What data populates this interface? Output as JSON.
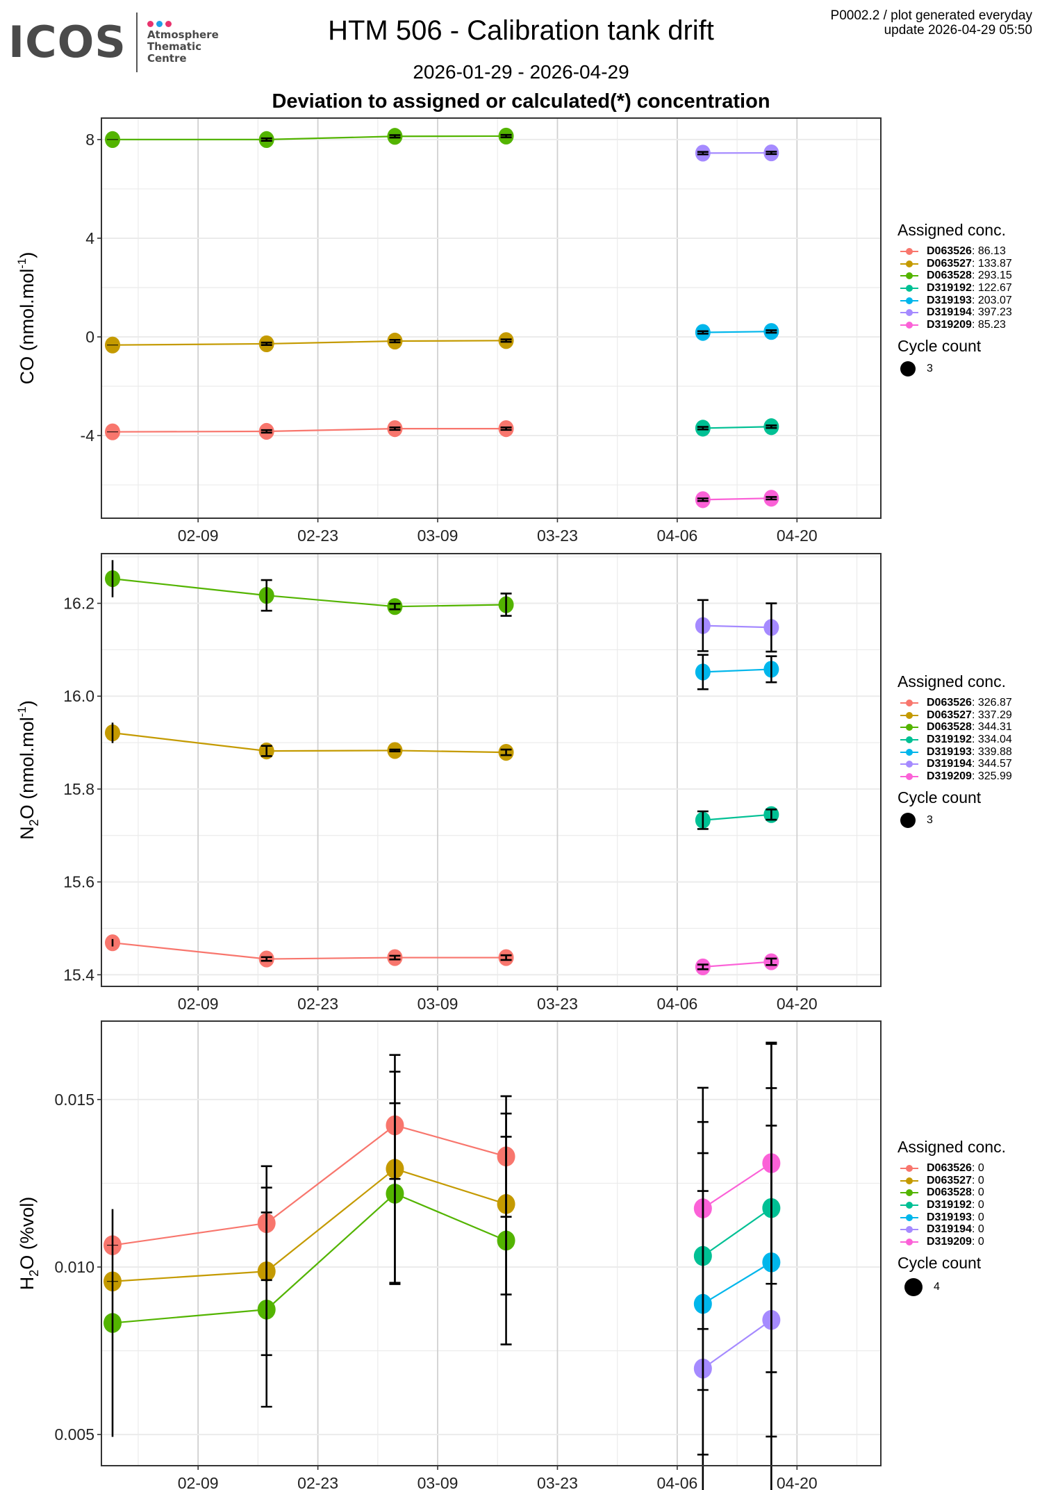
{
  "header": {
    "logo_word": "ICOS",
    "logo_lines": [
      "Atmosphere",
      "Thematic",
      "Centre"
    ],
    "logo_dot_colors": [
      "#e8336d",
      "#1ea0e6",
      "#e8336d"
    ],
    "title": "HTM 506 - Calibration tank drift",
    "date_range": "2026-01-29 - 2026-04-29",
    "heading": "Deviation to assigned or calculated(*) concentration",
    "meta_line1": "P0002.2 / plot generated everyday",
    "meta_line2": "update  2026-04-29 05:50"
  },
  "series_colors": {
    "D063526": "#F8766D",
    "D063527": "#C49A00",
    "D063528": "#53B400",
    "D319192": "#00C094",
    "D319193": "#00B6EB",
    "D319194": "#A58AFF",
    "D319209": "#FB61D7"
  },
  "chart_data": [
    {
      "type": "line",
      "panel": "CO",
      "ylabel": "CO (nmol.mol-1)",
      "ylabel_main": "CO (nmol.mol",
      "ylabel_sup": "-1",
      "ylabel_tail": ")",
      "ylim": [
        -7.35,
        8.87
      ],
      "yticks": [
        8,
        4,
        0,
        -4
      ],
      "ytick_labels": [
        "8",
        "4",
        "0",
        "-4"
      ],
      "xticks": [
        "2026-02-09",
        "2026-02-23",
        "2026-03-09",
        "2026-03-23",
        "2026-04-06",
        "2026-04-20"
      ],
      "xtick_labels": [
        "02-09",
        "02-23",
        "03-09",
        "03-23",
        "04-06",
        "04-20"
      ],
      "xlim": [
        "2026-01-28.7",
        "2026-04-29.8"
      ],
      "grid": true,
      "legend_title": "Assigned conc.",
      "cycle_title": "Cycle count",
      "cycle_value": "3",
      "series": [
        {
          "name": "D063526",
          "assigned": "86.13",
          "x": [
            "2026-01-30",
            "2026-02-17",
            "2026-03-04",
            "2026-03-17"
          ],
          "y": [
            -3.85,
            -3.83,
            -3.72,
            -3.72
          ],
          "err": [
            0.0,
            0.05,
            0.05,
            0.05
          ]
        },
        {
          "name": "D063527",
          "assigned": "133.87",
          "x": [
            "2026-01-30",
            "2026-02-17",
            "2026-03-04",
            "2026-03-17"
          ],
          "y": [
            -0.33,
            -0.28,
            -0.17,
            -0.15
          ],
          "err": [
            0.0,
            0.05,
            0.05,
            0.05
          ]
        },
        {
          "name": "D063528",
          "assigned": "293.15",
          "x": [
            "2026-01-30",
            "2026-02-17",
            "2026-03-04",
            "2026-03-17"
          ],
          "y": [
            8.0,
            8.0,
            8.13,
            8.14
          ],
          "err": [
            0.0,
            0.05,
            0.05,
            0.05
          ]
        },
        {
          "name": "D319192",
          "assigned": "122.67",
          "x": [
            "2026-04-09",
            "2026-04-17"
          ],
          "y": [
            -3.7,
            -3.64
          ],
          "err": [
            0.05,
            0.05
          ]
        },
        {
          "name": "D319193",
          "assigned": "203.07",
          "x": [
            "2026-04-09",
            "2026-04-17"
          ],
          "y": [
            0.18,
            0.22
          ],
          "err": [
            0.05,
            0.05
          ]
        },
        {
          "name": "D319194",
          "assigned": "397.23",
          "x": [
            "2026-04-09",
            "2026-04-17"
          ],
          "y": [
            7.45,
            7.46
          ],
          "err": [
            0.05,
            0.05
          ]
        },
        {
          "name": "D319209",
          "assigned": "85.23",
          "x": [
            "2026-04-09",
            "2026-04-17"
          ],
          "y": [
            -6.6,
            -6.54
          ],
          "err": [
            0.05,
            0.05
          ]
        }
      ]
    },
    {
      "type": "line",
      "panel": "N2O",
      "ylabel": "N2O (nmol.mol-1)",
      "ylabel_main": "N",
      "ylabel_sub": "2",
      "ylabel_mid": "O (nmol.mol",
      "ylabel_sup": "-1",
      "ylabel_tail": ")",
      "ylim": [
        15.375,
        16.307
      ],
      "yticks": [
        16.2,
        16.0,
        15.8,
        15.6,
        15.4
      ],
      "ytick_labels": [
        "16.2",
        "16.0",
        "15.8",
        "15.6",
        "15.4"
      ],
      "xticks": [
        "2026-02-09",
        "2026-02-23",
        "2026-03-09",
        "2026-03-23",
        "2026-04-06",
        "2026-04-20"
      ],
      "xtick_labels": [
        "02-09",
        "02-23",
        "03-09",
        "03-23",
        "04-06",
        "04-20"
      ],
      "grid": true,
      "legend_title": "Assigned conc.",
      "cycle_title": "Cycle count",
      "cycle_value": "3",
      "series": [
        {
          "name": "D063526",
          "assigned": "326.87",
          "x": [
            "2026-01-30",
            "2026-02-17",
            "2026-03-04",
            "2026-03-17"
          ],
          "y": [
            15.469,
            15.434,
            15.437,
            15.437
          ],
          "err": [
            0.008,
            0.004,
            0.004,
            0.005
          ]
        },
        {
          "name": "D063527",
          "assigned": "337.29",
          "x": [
            "2026-01-30",
            "2026-02-17",
            "2026-03-04",
            "2026-03-17"
          ],
          "y": [
            15.921,
            15.882,
            15.883,
            15.879
          ],
          "err": [
            0.022,
            0.011,
            0.002,
            0.006
          ]
        },
        {
          "name": "D063528",
          "assigned": "344.31",
          "x": [
            "2026-01-30",
            "2026-02-17",
            "2026-03-04",
            "2026-03-17"
          ],
          "y": [
            16.253,
            16.217,
            16.193,
            16.197
          ],
          "err": [
            0.04,
            0.033,
            0.006,
            0.024
          ]
        },
        {
          "name": "D319192",
          "assigned": "334.04",
          "x": [
            "2026-04-09",
            "2026-04-17"
          ],
          "y": [
            15.733,
            15.745
          ],
          "err": [
            0.019,
            0.011
          ]
        },
        {
          "name": "D319193",
          "assigned": "339.88",
          "x": [
            "2026-04-09",
            "2026-04-17"
          ],
          "y": [
            16.052,
            16.058
          ],
          "err": [
            0.037,
            0.028
          ]
        },
        {
          "name": "D319194",
          "assigned": "344.57",
          "x": [
            "2026-04-09",
            "2026-04-17"
          ],
          "y": [
            16.152,
            16.148
          ],
          "err": [
            0.055,
            0.052
          ]
        },
        {
          "name": "D319209",
          "assigned": "325.99",
          "x": [
            "2026-04-09",
            "2026-04-17"
          ],
          "y": [
            15.417,
            15.428
          ],
          "err": [
            0.005,
            0.007
          ]
        }
      ]
    },
    {
      "type": "line",
      "panel": "H2O",
      "ylabel": "H2O (%vol)",
      "ylabel_main": "H",
      "ylabel_sub": "2",
      "ylabel_mid": "O (%vol)",
      "ylim": [
        0.00407,
        0.01734
      ],
      "yticks": [
        0.015,
        0.01,
        0.005
      ],
      "ytick_labels": [
        "0.015",
        "0.010",
        "0.005"
      ],
      "xticks": [
        "2026-02-09",
        "2026-02-23",
        "2026-03-09",
        "2026-03-23",
        "2026-04-06",
        "2026-04-20"
      ],
      "xtick_labels": [
        "02-09",
        "02-23",
        "03-09",
        "03-23",
        "04-06",
        "04-20"
      ],
      "grid": true,
      "legend_title": "Assigned conc.",
      "cycle_title": "Cycle count",
      "cycle_value": "4",
      "series": [
        {
          "name": "D063526",
          "assigned": "0",
          "x": [
            "2026-01-30",
            "2026-02-17",
            "2026-03-04",
            "2026-03-17"
          ],
          "y": [
            0.01065,
            0.01131,
            0.01423,
            0.0133
          ],
          "err": [
            0.0,
            0.0017,
            0.0016,
            0.0018
          ]
        },
        {
          "name": "D063527",
          "assigned": "0",
          "x": [
            "2026-01-30",
            "2026-02-17",
            "2026-03-04",
            "2026-03-17"
          ],
          "y": [
            0.00957,
            0.00987,
            0.01293,
            0.01188
          ],
          "err": [
            0.0,
            0.0025,
            0.0034,
            0.0027
          ]
        },
        {
          "name": "D063528",
          "assigned": "0",
          "x": [
            "2026-01-30",
            "2026-02-17",
            "2026-03-04",
            "2026-03-17"
          ],
          "y": [
            0.00833,
            0.00873,
            0.01219,
            0.01079
          ],
          "err": [
            0.0034,
            0.0029,
            0.0027,
            0.0031
          ]
        },
        {
          "name": "D319192",
          "assigned": "0",
          "x": [
            "2026-04-09",
            "2026-04-17"
          ],
          "y": [
            0.01033,
            0.01176
          ],
          "err": [
            0.004,
            0.0049
          ]
        },
        {
          "name": "D319193",
          "assigned": "0",
          "x": [
            "2026-04-09",
            "2026-04-17"
          ],
          "y": [
            0.0089,
            0.01014
          ],
          "err": [
            0.0045,
            0.0052
          ]
        },
        {
          "name": "D319194",
          "assigned": "0",
          "x": [
            "2026-04-09",
            "2026-04-17"
          ],
          "y": [
            0.00697,
            0.00842
          ],
          "err": [
            0.0053,
            0.0058
          ]
        },
        {
          "name": "D319209",
          "assigned": "0",
          "x": [
            "2026-04-09",
            "2026-04-17"
          ],
          "y": [
            0.01175,
            0.0131
          ],
          "err": [
            0.0036,
            0.0036
          ]
        }
      ]
    }
  ]
}
